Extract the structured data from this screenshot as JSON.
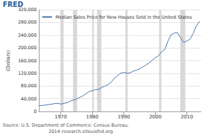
{
  "chart_data": {
    "type": "line",
    "logo": "FRED",
    "series": [
      {
        "name": "Median Sales Price for New Houses Sold in the United States",
        "color": "#4572a7",
        "x": [
          1963,
          1964,
          1965,
          1966,
          1967,
          1968,
          1969,
          1970,
          1971,
          1972,
          1973,
          1974,
          1975,
          1976,
          1977,
          1978,
          1979,
          1980,
          1981,
          1982,
          1983,
          1984,
          1985,
          1986,
          1987,
          1988,
          1989,
          1990,
          1991,
          1992,
          1993,
          1994,
          1995,
          1996,
          1997,
          1998,
          1999,
          2000,
          2001,
          2002,
          2003,
          2004,
          2005,
          2006,
          2007,
          2008,
          2009,
          2010,
          2011,
          2012,
          2013,
          2014
        ],
        "values": [
          18000,
          18900,
          20000,
          21400,
          22700,
          24700,
          25600,
          23400,
          25200,
          27600,
          32500,
          35900,
          39300,
          44200,
          48800,
          55700,
          62900,
          64600,
          68900,
          69300,
          75300,
          79900,
          84300,
          92000,
          104500,
          112500,
          120000,
          122900,
          120000,
          121500,
          126500,
          130000,
          133900,
          140000,
          146000,
          152500,
          161000,
          169000,
          175200,
          187600,
          195000,
          221000,
          240900,
          246500,
          247900,
          232100,
          216700,
          221800,
          227200,
          245200,
          268900,
          282800
        ]
      }
    ],
    "shaded_periods": [
      [
        1969.9,
        1970.9
      ],
      [
        1973.9,
        1975.2
      ],
      [
        1980.0,
        1980.5
      ],
      [
        1981.5,
        1982.9
      ],
      [
        1990.5,
        1991.2
      ],
      [
        2001.2,
        2001.9
      ],
      [
        2007.9,
        2009.5
      ]
    ],
    "xlim": [
      1963,
      2014.5
    ],
    "xticks": [
      1970,
      1980,
      1990,
      2000,
      2010
    ],
    "ylabel": "(Dollars)",
    "ylim": [
      0,
      320000
    ],
    "yticks": [
      0,
      {
        "value": 40000,
        "label": "40,000"
      },
      {
        "value": 80000,
        "label": "80,000"
      },
      {
        "value": 120000,
        "label": "120,000"
      },
      {
        "value": 160000,
        "label": "160,000"
      },
      {
        "value": 200000,
        "label": "200,000"
      },
      {
        "value": 240000,
        "label": "240,000"
      },
      {
        "value": 280000,
        "label": "280,000"
      },
      {
        "value": 320000,
        "label": "320,000"
      }
    ],
    "grid": true,
    "legend": "top",
    "source": "Source: U.S. Department of Commerce: Census Bureau.",
    "credit": "2014 research.stlouisfed.org"
  }
}
